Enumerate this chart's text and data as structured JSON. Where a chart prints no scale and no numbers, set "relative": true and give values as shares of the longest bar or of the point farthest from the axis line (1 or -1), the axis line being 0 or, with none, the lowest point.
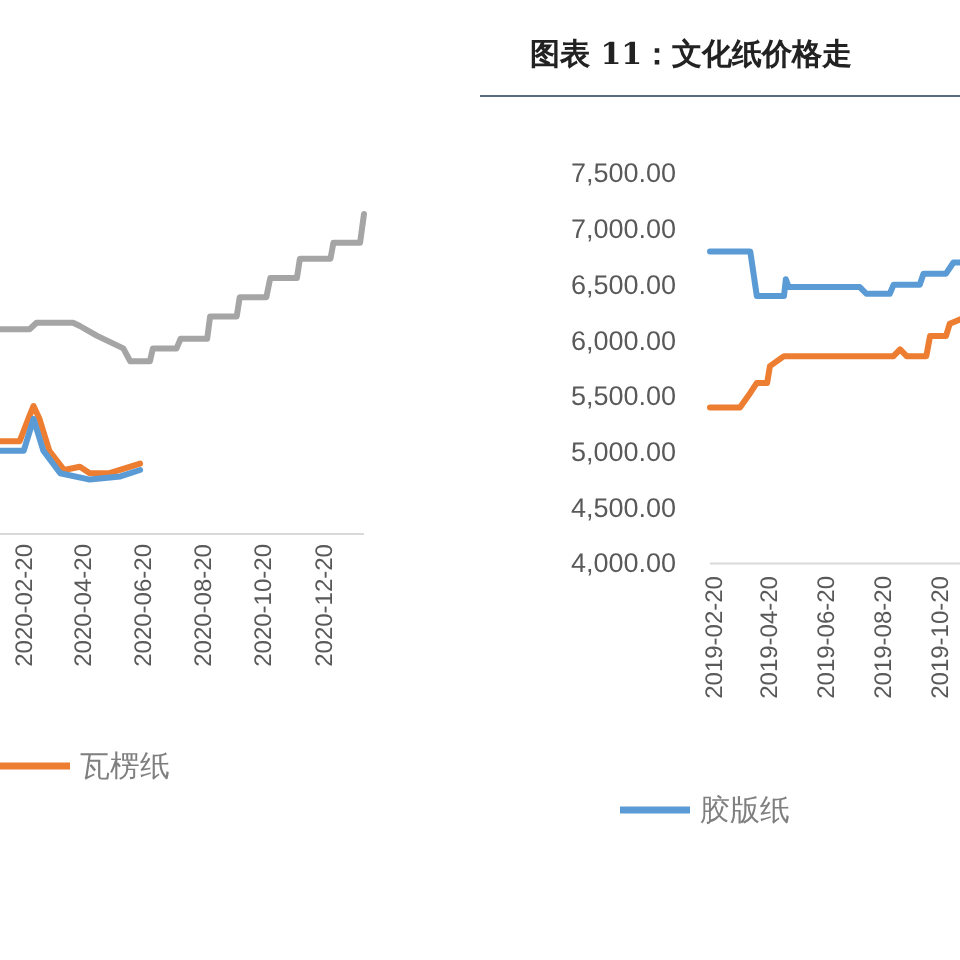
{
  "chart_data": [
    {
      "type": "line",
      "relative": true,
      "grid": false,
      "legend": "bottom",
      "xlim": [
        "2020-01-27",
        "2021-01-30"
      ],
      "xticks": [
        "2020-02-20",
        "2020-04-20",
        "2020-06-20",
        "2020-08-20",
        "2020-10-20",
        "2020-12-20"
      ],
      "series": [
        {
          "color": "#a5a5a5",
          "x": [
            "2020-01-27",
            "2020-02-26",
            "2020-03-04",
            "2020-04-10",
            "2020-04-17",
            "2020-05-04",
            "2020-05-31",
            "2020-06-07",
            "2020-06-27",
            "2020-06-30",
            "2020-07-24",
            "2020-07-28",
            "2020-08-24",
            "2020-08-27",
            "2020-09-23",
            "2020-09-26",
            "2020-10-23",
            "2020-10-27",
            "2020-11-23",
            "2020-11-26",
            "2020-12-27",
            "2020-12-30",
            "2021-01-26",
            "2021-01-30"
          ],
          "values": [
            0.64,
            0.64,
            0.66,
            0.66,
            0.65,
            0.62,
            0.58,
            0.54,
            0.54,
            0.58,
            0.58,
            0.61,
            0.61,
            0.68,
            0.68,
            0.74,
            0.74,
            0.8,
            0.8,
            0.86,
            0.86,
            0.91,
            0.91,
            1
          ]
        },
        {
          "name": "瓦楞纸",
          "color": "#ed7d31",
          "x": [
            "2020-01-27",
            "2020-02-16",
            "2020-02-26",
            "2020-03-01",
            "2020-03-07",
            "2020-03-17",
            "2020-04-01",
            "2020-04-17",
            "2020-04-27",
            "2020-05-17",
            "2020-06-17"
          ],
          "values": [
            0.29,
            0.29,
            0.37,
            0.4,
            0.36,
            0.26,
            0.2,
            0.21,
            0.19,
            0.19,
            0.22
          ]
        },
        {
          "color": "#5b9bd5",
          "x": [
            "2020-01-27",
            "2020-02-20",
            "2020-03-01",
            "2020-03-11",
            "2020-03-28",
            "2020-04-27",
            "2020-05-28",
            "2020-06-17"
          ],
          "values": [
            0.26,
            0.26,
            0.36,
            0.26,
            0.19,
            0.17,
            0.18,
            0.2
          ]
        }
      ]
    },
    {
      "type": "line",
      "title": "图表 11：文化纸价格走",
      "grid": false,
      "legend": "bottom",
      "xlim": [
        "2019-02-16",
        "2019-11-10"
      ],
      "xticks": [
        "2019-02-20",
        "2019-04-20",
        "2019-06-20",
        "2019-08-20",
        "2019-10-20"
      ],
      "ylim": [
        4000,
        7500
      ],
      "yticks": [
        {
          "value": 4000,
          "label": "4,000.00"
        },
        {
          "value": 4500,
          "label": "4,500.00"
        },
        {
          "value": 5000,
          "label": "5,000.00"
        },
        {
          "value": 5500,
          "label": "5,500.00"
        },
        {
          "value": 6000,
          "label": "6,000.00"
        },
        {
          "value": 6500,
          "label": "6,500.00"
        },
        {
          "value": 7000,
          "label": "7,000.00"
        },
        {
          "value": 7500,
          "label": "7,500.00"
        }
      ],
      "series": [
        {
          "name": "胶版纸",
          "color": "#5b9bd5",
          "x": [
            "2019-02-16",
            "2019-03-31",
            "2019-04-07",
            "2019-05-06",
            "2019-05-08",
            "2019-05-11",
            "2019-07-26",
            "2019-08-02",
            "2019-08-27",
            "2019-08-31",
            "2019-09-28",
            "2019-10-02",
            "2019-10-26",
            "2019-11-03",
            "2019-11-10"
          ],
          "values": [
            6800,
            6800,
            6400,
            6400,
            6550,
            6480,
            6480,
            6420,
            6420,
            6500,
            6500,
            6600,
            6600,
            6700,
            6700
          ]
        },
        {
          "color": "#ed7d31",
          "x": [
            "2019-02-16",
            "2019-03-20",
            "2019-03-31",
            "2019-04-07",
            "2019-04-18",
            "2019-04-21",
            "2019-05-06",
            "2019-08-31",
            "2019-09-07",
            "2019-09-14",
            "2019-10-05",
            "2019-10-09",
            "2019-10-26",
            "2019-10-30",
            "2019-11-10"
          ],
          "values": [
            5400,
            5400,
            5530,
            5620,
            5620,
            5770,
            5860,
            5860,
            5920,
            5860,
            5860,
            6040,
            6040,
            6150,
            6190
          ]
        }
      ]
    }
  ]
}
